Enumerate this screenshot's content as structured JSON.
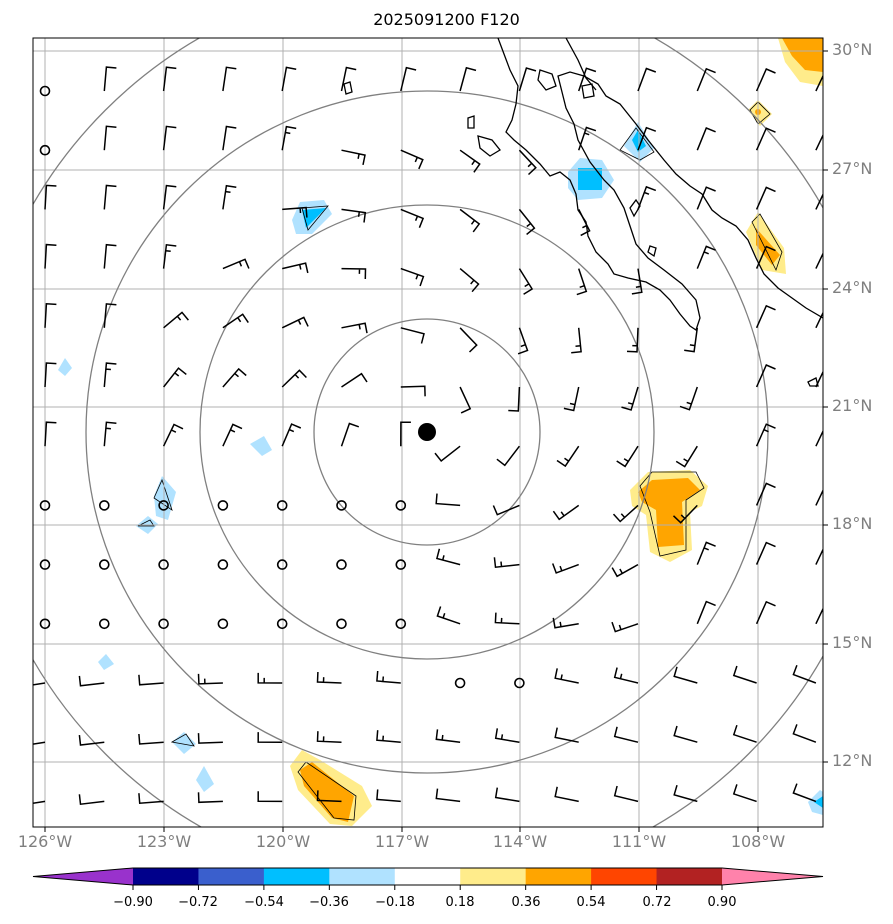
{
  "title": "2025091200 F120",
  "lat_labels": [
    "30°N",
    "27°N",
    "24°N",
    "21°N",
    "18°N",
    "15°N",
    "12°N"
  ],
  "lon_labels": [
    "126°W",
    "123°W",
    "120°W",
    "117°W",
    "114°W",
    "111°W",
    "108°W"
  ],
  "colorbar": {
    "ticks": [
      "−0.90",
      "−0.72",
      "−0.54",
      "−0.36",
      "−0.18",
      "0.18",
      "0.36",
      "0.54",
      "0.72",
      "0.90"
    ],
    "colors": [
      "#9932cc",
      "#00008b",
      "#3a5fcd",
      "#00bfff",
      "#b0e2ff",
      "#ffffff",
      "#ffec8b",
      "#ffa500",
      "#ff4500",
      "#b22222",
      "#ff82ab"
    ]
  },
  "colors": {
    "grid": "#b0b0b0",
    "range_rings": "#808080",
    "coastline": "#000000",
    "wind_barbs": "#000000",
    "storm_center": "#000000",
    "axis_labels": "#7f7f7f"
  },
  "map": {
    "extent": {
      "lon": [
        -126.2,
        -106.2
      ],
      "lat": [
        10.4,
        30.3
      ]
    },
    "storm_center": {
      "lon": -116.4,
      "lat": 20.4
    }
  }
}
